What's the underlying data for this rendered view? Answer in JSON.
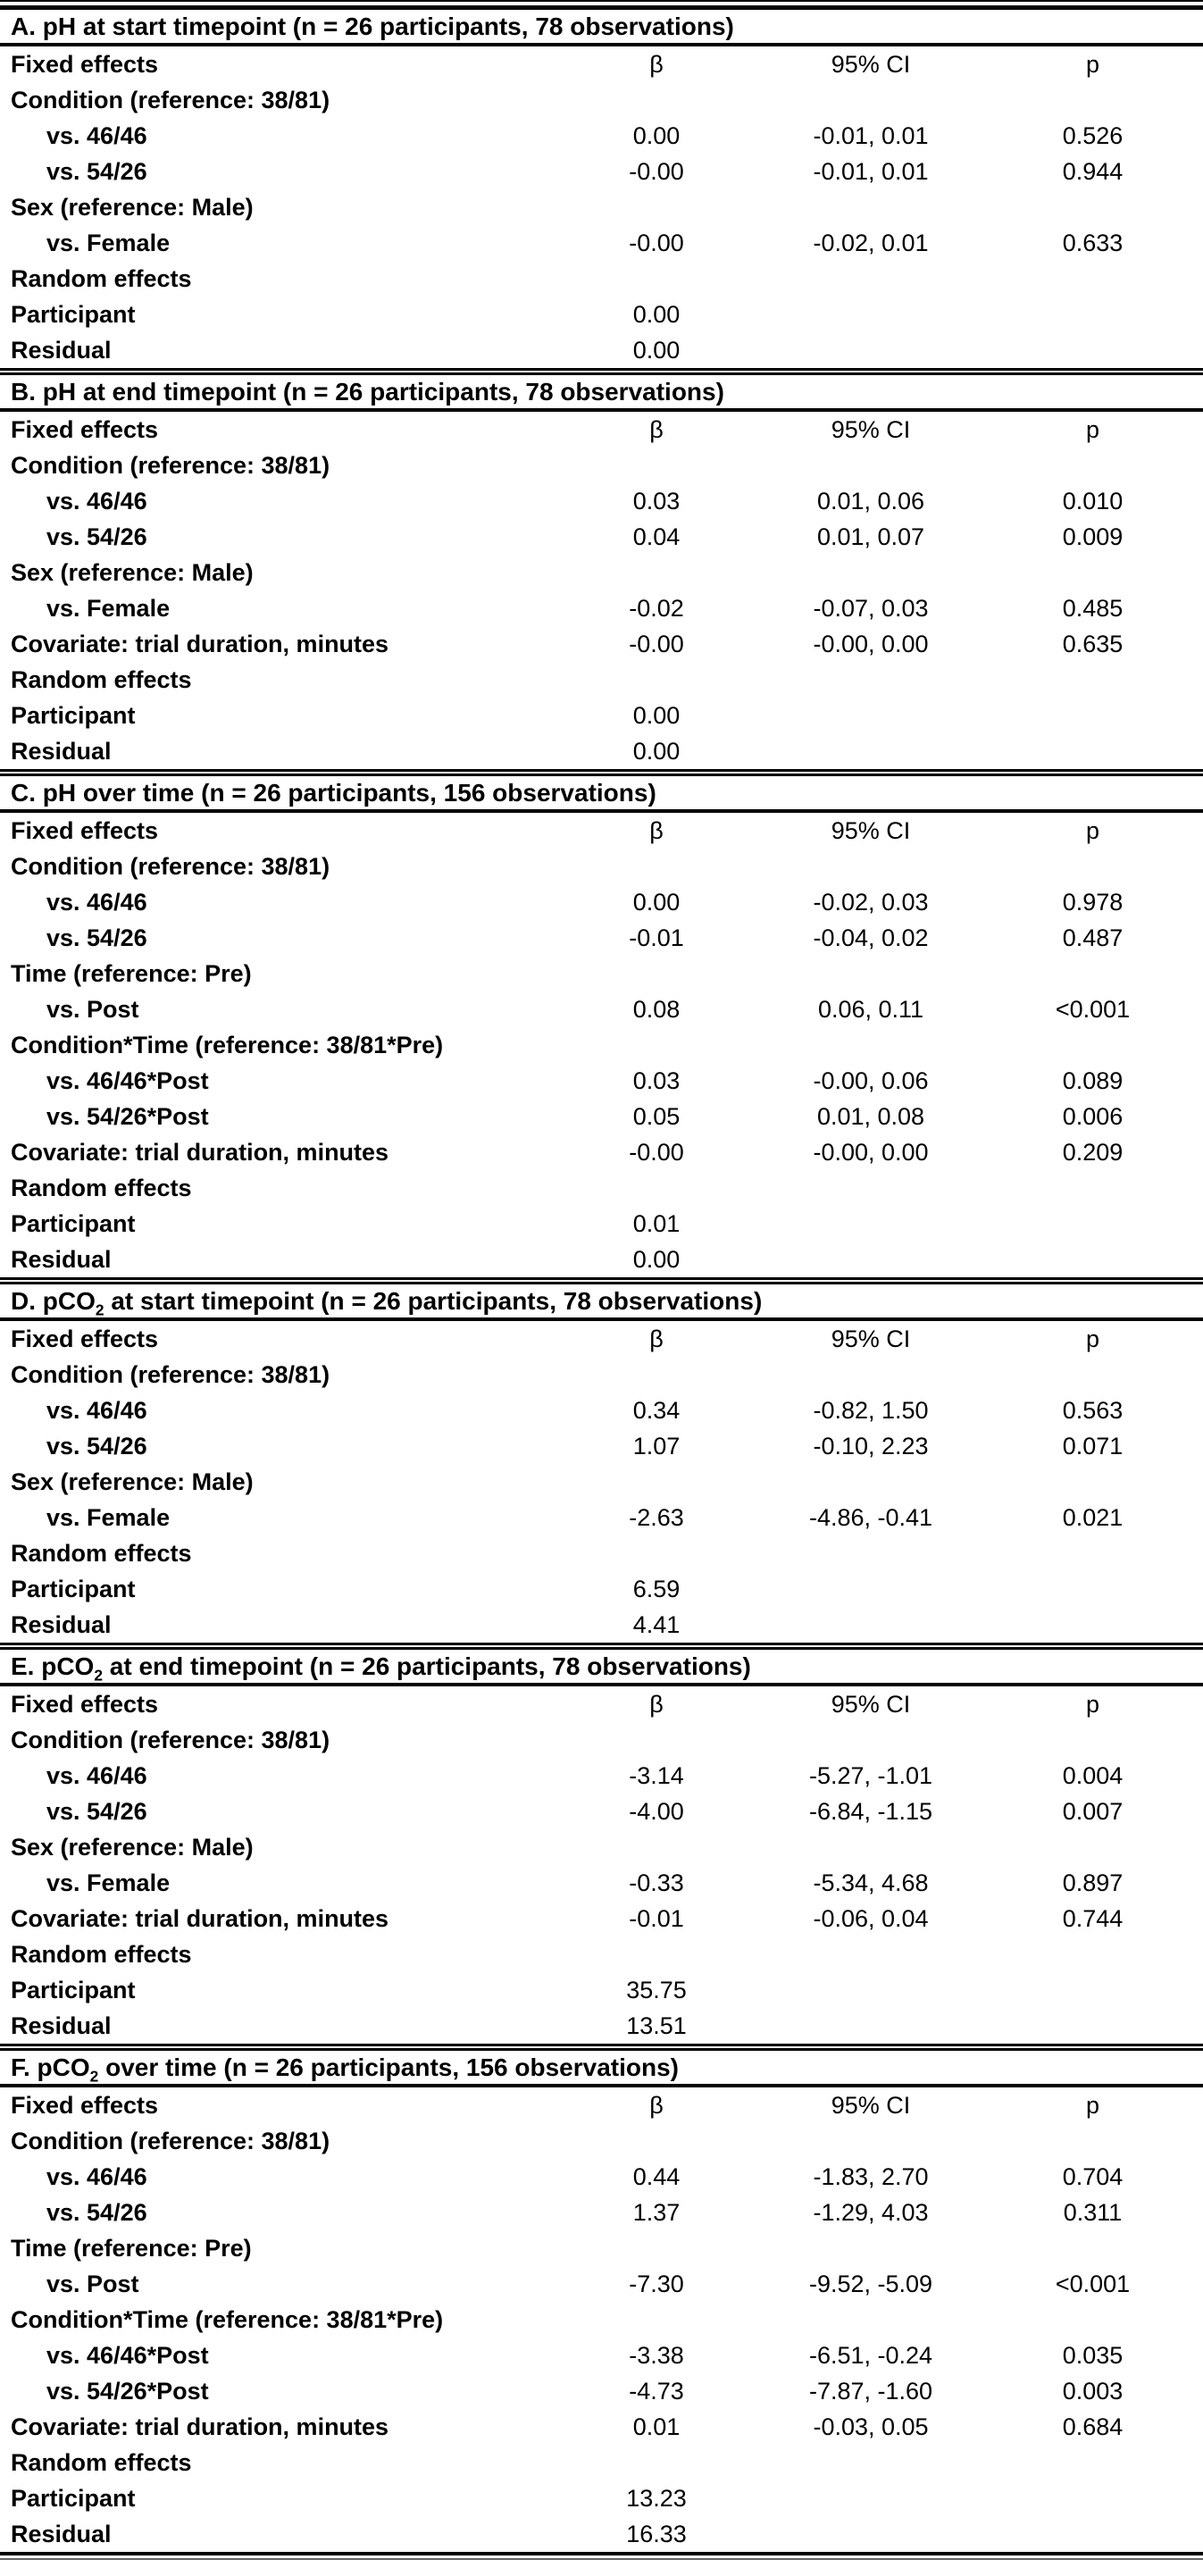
{
  "table": {
    "columns": {
      "label": "Fixed effects",
      "beta": "β",
      "ci": "95% CI",
      "p": "p"
    },
    "panels": [
      {
        "title": {
          "pre": "A. pH at start timepoint (n = 26 participants, 78 observations)",
          "sub": "",
          "post": ""
        },
        "rows": [
          {
            "label": "Condition (reference: 38/81)",
            "beta": "",
            "ci": "",
            "p": "",
            "indent": false
          },
          {
            "label": "vs. 46/46",
            "beta": "0.00",
            "ci": "-0.01, 0.01",
            "p": "0.526",
            "indent": true
          },
          {
            "label": "vs. 54/26",
            "beta": "-0.00",
            "ci": "-0.01, 0.01",
            "p": "0.944",
            "indent": true
          },
          {
            "label": "Sex (reference: Male)",
            "beta": "",
            "ci": "",
            "p": "",
            "indent": false
          },
          {
            "label": "vs. Female",
            "beta": "-0.00",
            "ci": "-0.02, 0.01",
            "p": "0.633",
            "indent": true
          },
          {
            "label": "Random effects",
            "beta": "",
            "ci": "",
            "p": "",
            "indent": false
          },
          {
            "label": "Participant",
            "beta": "0.00",
            "ci": "",
            "p": "",
            "indent": false
          },
          {
            "label": "Residual",
            "beta": "0.00",
            "ci": "",
            "p": "",
            "indent": false
          }
        ]
      },
      {
        "title": {
          "pre": "B. pH at end timepoint (n = 26 participants, 78 observations)",
          "sub": "",
          "post": ""
        },
        "rows": [
          {
            "label": "Condition (reference: 38/81)",
            "beta": "",
            "ci": "",
            "p": "",
            "indent": false
          },
          {
            "label": "vs. 46/46",
            "beta": "0.03",
            "ci": "0.01, 0.06",
            "p": "0.010",
            "indent": true
          },
          {
            "label": "vs. 54/26",
            "beta": "0.04",
            "ci": "0.01, 0.07",
            "p": "0.009",
            "indent": true
          },
          {
            "label": "Sex (reference: Male)",
            "beta": "",
            "ci": "",
            "p": "",
            "indent": false
          },
          {
            "label": "vs. Female",
            "beta": "-0.02",
            "ci": "-0.07, 0.03",
            "p": "0.485",
            "indent": true
          },
          {
            "label": "Covariate: trial duration, minutes",
            "beta": "-0.00",
            "ci": "-0.00, 0.00",
            "p": "0.635",
            "indent": false
          },
          {
            "label": "Random effects",
            "beta": "",
            "ci": "",
            "p": "",
            "indent": false
          },
          {
            "label": "Participant",
            "beta": "0.00",
            "ci": "",
            "p": "",
            "indent": false
          },
          {
            "label": "Residual",
            "beta": "0.00",
            "ci": "",
            "p": "",
            "indent": false
          }
        ]
      },
      {
        "title": {
          "pre": "C. pH over time (n = 26 participants, 156 observations)",
          "sub": "",
          "post": ""
        },
        "rows": [
          {
            "label": "Condition (reference: 38/81)",
            "beta": "",
            "ci": "",
            "p": "",
            "indent": false
          },
          {
            "label": "vs. 46/46",
            "beta": "0.00",
            "ci": "-0.02, 0.03",
            "p": "0.978",
            "indent": true
          },
          {
            "label": "vs. 54/26",
            "beta": "-0.01",
            "ci": "-0.04, 0.02",
            "p": "0.487",
            "indent": true
          },
          {
            "label": "Time (reference: Pre)",
            "beta": "",
            "ci": "",
            "p": "",
            "indent": false
          },
          {
            "label": "vs. Post",
            "beta": "0.08",
            "ci": "0.06, 0.11",
            "p": "<0.001",
            "indent": true
          },
          {
            "label": "Condition*Time (reference: 38/81*Pre)",
            "beta": "",
            "ci": "",
            "p": "",
            "indent": false
          },
          {
            "label": "vs. 46/46*Post",
            "beta": "0.03",
            "ci": "-0.00, 0.06",
            "p": "0.089",
            "indent": true
          },
          {
            "label": "vs. 54/26*Post",
            "beta": "0.05",
            "ci": "0.01, 0.08",
            "p": "0.006",
            "indent": true
          },
          {
            "label": "Covariate: trial duration, minutes",
            "beta": "-0.00",
            "ci": "-0.00, 0.00",
            "p": "0.209",
            "indent": false
          },
          {
            "label": "Random effects",
            "beta": "",
            "ci": "",
            "p": "",
            "indent": false
          },
          {
            "label": "Participant",
            "beta": "0.01",
            "ci": "",
            "p": "",
            "indent": false
          },
          {
            "label": "Residual",
            "beta": "0.00",
            "ci": "",
            "p": "",
            "indent": false
          }
        ]
      },
      {
        "title": {
          "pre": "D. pCO",
          "sub": "2",
          "post": " at start timepoint (n = 26 participants, 78 observations)"
        },
        "rows": [
          {
            "label": "Condition (reference: 38/81)",
            "beta": "",
            "ci": "",
            "p": "",
            "indent": false
          },
          {
            "label": "vs. 46/46",
            "beta": "0.34",
            "ci": "-0.82, 1.50",
            "p": "0.563",
            "indent": true
          },
          {
            "label": "vs. 54/26",
            "beta": "1.07",
            "ci": "-0.10, 2.23",
            "p": "0.071",
            "indent": true
          },
          {
            "label": "Sex (reference: Male)",
            "beta": "",
            "ci": "",
            "p": "",
            "indent": false
          },
          {
            "label": "vs. Female",
            "beta": "-2.63",
            "ci": "-4.86, -0.41",
            "p": "0.021",
            "indent": true
          },
          {
            "label": "Random effects",
            "beta": "",
            "ci": "",
            "p": "",
            "indent": false
          },
          {
            "label": "Participant",
            "beta": "6.59",
            "ci": "",
            "p": "",
            "indent": false
          },
          {
            "label": "Residual",
            "beta": "4.41",
            "ci": "",
            "p": "",
            "indent": false
          }
        ]
      },
      {
        "title": {
          "pre": "E. pCO",
          "sub": "2",
          "post": " at end timepoint (n = 26 participants, 78 observations)"
        },
        "rows": [
          {
            "label": "Condition (reference: 38/81)",
            "beta": "",
            "ci": "",
            "p": "",
            "indent": false
          },
          {
            "label": "vs. 46/46",
            "beta": "-3.14",
            "ci": "-5.27, -1.01",
            "p": "0.004",
            "indent": true
          },
          {
            "label": "vs. 54/26",
            "beta": "-4.00",
            "ci": "-6.84, -1.15",
            "p": "0.007",
            "indent": true
          },
          {
            "label": "Sex (reference: Male)",
            "beta": "",
            "ci": "",
            "p": "",
            "indent": false
          },
          {
            "label": "vs. Female",
            "beta": "-0.33",
            "ci": "-5.34, 4.68",
            "p": "0.897",
            "indent": true
          },
          {
            "label": "Covariate: trial duration, minutes",
            "beta": "-0.01",
            "ci": "-0.06, 0.04",
            "p": "0.744",
            "indent": false
          },
          {
            "label": "Random effects",
            "beta": "",
            "ci": "",
            "p": "",
            "indent": false
          },
          {
            "label": "Participant",
            "beta": "35.75",
            "ci": "",
            "p": "",
            "indent": false
          },
          {
            "label": "Residual",
            "beta": "13.51",
            "ci": "",
            "p": "",
            "indent": false
          }
        ]
      },
      {
        "title": {
          "pre": "F. pCO",
          "sub": "2",
          "post": " over time (n = 26 participants, 156 observations)"
        },
        "rows": [
          {
            "label": "Condition (reference: 38/81)",
            "beta": "",
            "ci": "",
            "p": "",
            "indent": false
          },
          {
            "label": "vs. 46/46",
            "beta": "0.44",
            "ci": "-1.83, 2.70",
            "p": "0.704",
            "indent": true
          },
          {
            "label": "vs. 54/26",
            "beta": "1.37",
            "ci": "-1.29, 4.03",
            "p": "0.311",
            "indent": true
          },
          {
            "label": "Time (reference: Pre)",
            "beta": "",
            "ci": "",
            "p": "",
            "indent": false
          },
          {
            "label": "vs. Post",
            "beta": "-7.30",
            "ci": "-9.52, -5.09",
            "p": "<0.001",
            "indent": true
          },
          {
            "label": "Condition*Time (reference: 38/81*Pre)",
            "beta": "",
            "ci": "",
            "p": "",
            "indent": false
          },
          {
            "label": "vs. 46/46*Post",
            "beta": "-3.38",
            "ci": "-6.51, -0.24",
            "p": "0.035",
            "indent": true
          },
          {
            "label": "vs. 54/26*Post",
            "beta": "-4.73",
            "ci": "-7.87, -1.60",
            "p": "0.003",
            "indent": true
          },
          {
            "label": "Covariate: trial duration, minutes",
            "beta": "0.01",
            "ci": "-0.03, 0.05",
            "p": "0.684",
            "indent": false
          },
          {
            "label": "Random effects",
            "beta": "",
            "ci": "",
            "p": "",
            "indent": false
          },
          {
            "label": "Participant",
            "beta": "13.23",
            "ci": "",
            "p": "",
            "indent": false
          },
          {
            "label": "Residual",
            "beta": "16.33",
            "ci": "",
            "p": "",
            "indent": false
          }
        ]
      }
    ]
  }
}
